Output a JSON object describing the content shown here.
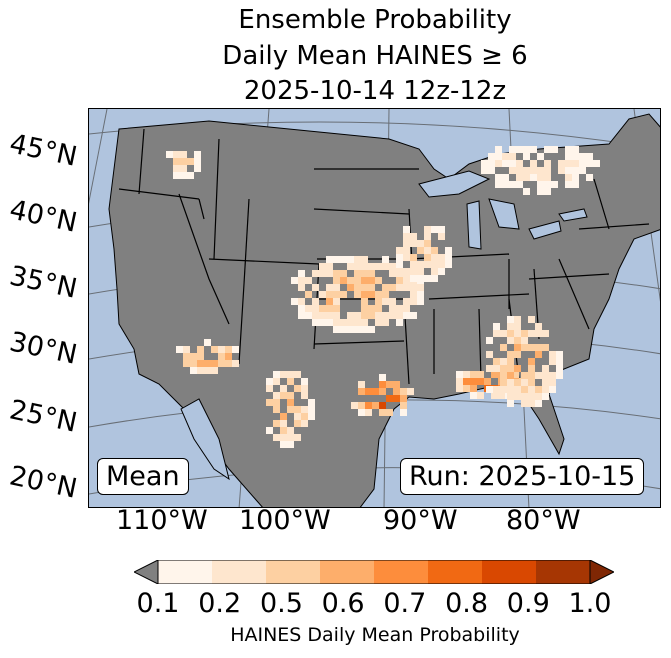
{
  "title": {
    "line1": "Ensemble Probability",
    "line2": "Daily Mean HAINES ≥ 6",
    "line3": "2025-10-14 12z-12z"
  },
  "map": {
    "ocean_color": "#b0c4de",
    "land_color": "#808080",
    "lat_labels": [
      "45°N",
      "40°N",
      "35°N",
      "30°N",
      "25°N",
      "20°N"
    ],
    "lon_labels": [
      "110°W",
      "100°W",
      "90°W",
      "80°W"
    ],
    "stat_label": "Mean",
    "run_label": "Run: 2025-10-15"
  },
  "colorbar": {
    "label": "HAINES Daily Mean Probability",
    "ticks": [
      "0.1",
      "0.2",
      "0.5",
      "0.6",
      "0.7",
      "0.8",
      "0.9",
      "1.0"
    ],
    "under_color": "#808080",
    "colors": [
      "#fff5eb",
      "#fee6ce",
      "#fdd0a2",
      "#fdae6b",
      "#fd8d3c",
      "#f16913",
      "#d94801",
      "#a63603"
    ],
    "over_color": "#7f2704"
  }
}
